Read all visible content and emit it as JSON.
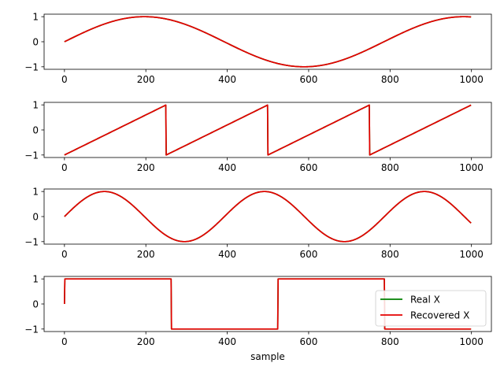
{
  "chart_data": {
    "type": "line",
    "xlabel": "sample",
    "legend": {
      "placement": "lower-right of bottom panel",
      "entries": [
        {
          "label": "Real X",
          "color": "#008000"
        },
        {
          "label": "Recovered X",
          "color": "#e50000"
        }
      ]
    },
    "shared_x": {
      "range": [
        0,
        999
      ],
      "xlim": [
        -50,
        1049
      ],
      "ticks": [
        0,
        200,
        400,
        600,
        800,
        1000
      ]
    },
    "panels": [
      {
        "signal": "sine",
        "period": 785,
        "ylim": [
          -1.1,
          1.1
        ],
        "yticks": [
          1,
          0,
          -1
        ],
        "series": [
          {
            "name": "Real X",
            "color": "#008000"
          },
          {
            "name": "Recovered X",
            "color": "#e50000"
          }
        ]
      },
      {
        "signal": "sawtooth",
        "period": 250,
        "ylim": [
          -1.1,
          1.1
        ],
        "yticks": [
          1,
          0,
          -1
        ],
        "series": [
          {
            "name": "Real X",
            "color": "#008000"
          },
          {
            "name": "Recovered X",
            "color": "#e50000"
          }
        ]
      },
      {
        "signal": "sine",
        "period": 393,
        "ylim": [
          -1.1,
          1.1
        ],
        "yticks": [
          1,
          0,
          -1
        ],
        "series": [
          {
            "name": "Real X",
            "color": "#008000"
          },
          {
            "name": "Recovered X",
            "color": "#e50000"
          }
        ]
      },
      {
        "signal": "square",
        "period": 524,
        "ylim": [
          -1.1,
          1.1
        ],
        "yticks": [
          1,
          0,
          -1
        ],
        "series": [
          {
            "name": "Real X",
            "color": "#008000"
          },
          {
            "name": "Recovered X",
            "color": "#e50000"
          }
        ]
      }
    ]
  }
}
